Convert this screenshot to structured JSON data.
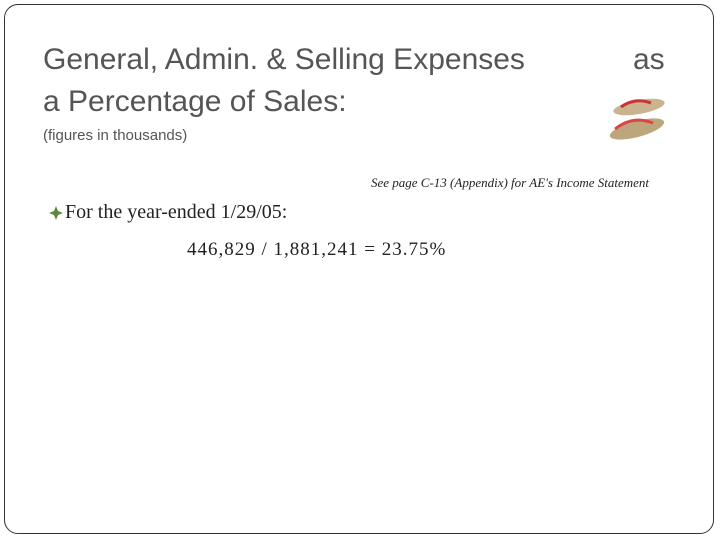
{
  "title_line1": "General, Admin. & Selling Expenses",
  "title_as": "as",
  "title_line2": "a Percentage of Sales:",
  "subtitle": "(figures in thousands)",
  "note": "See page C-13 (Appendix) for AE's Income Statement",
  "bullet": "For the year-ended 1/29/05:",
  "formula": "446,829 / 1,881,241 = 23.75%"
}
